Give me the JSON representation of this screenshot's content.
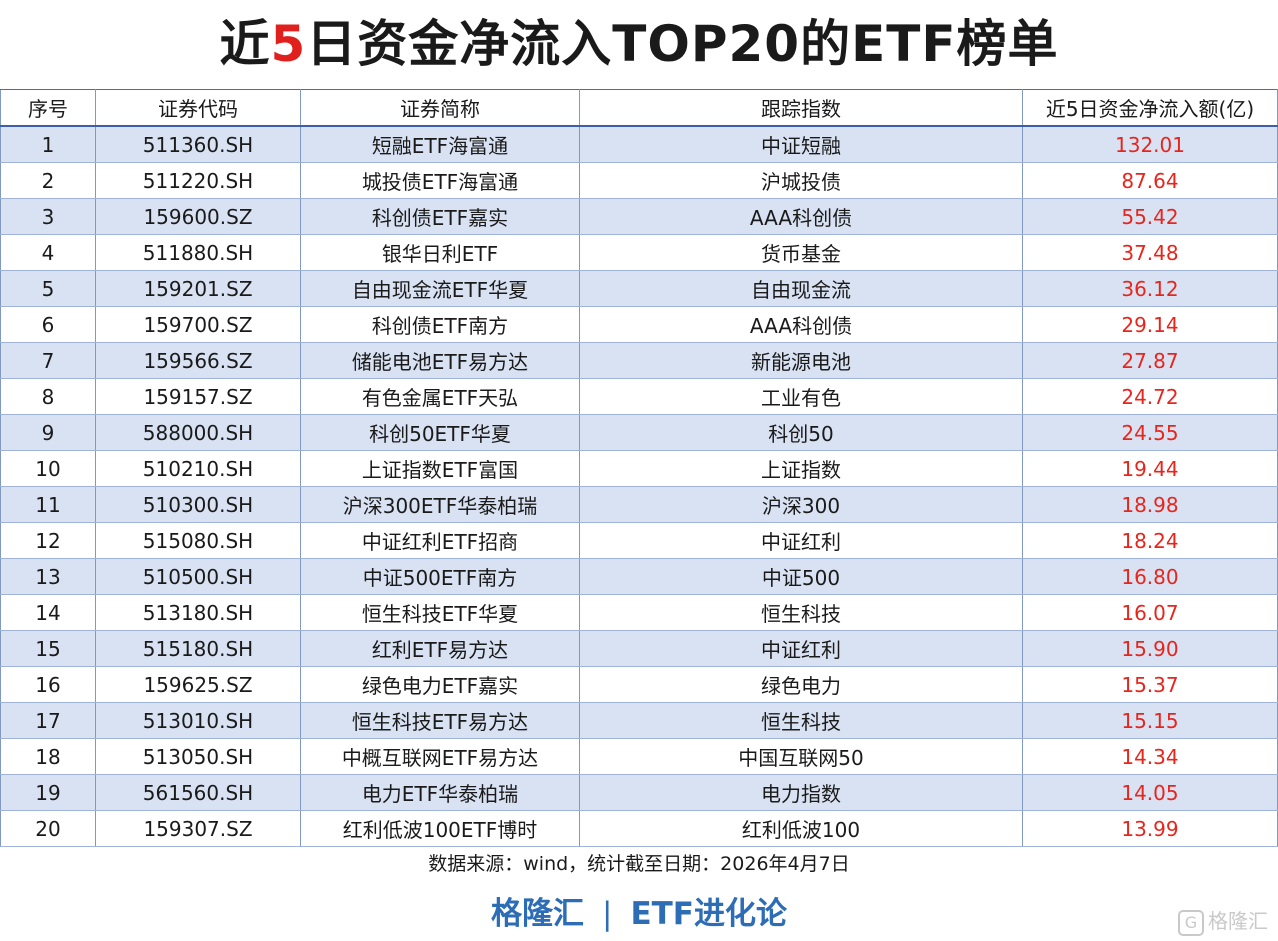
{
  "title": {
    "prefix": "近",
    "highlight": "5",
    "suffix": "日资金净流入TOP20的ETF榜单"
  },
  "table": {
    "headers": [
      "序号",
      "证券代码",
      "证券简称",
      "跟踪指数",
      "近5日资金净流入额(亿)"
    ],
    "rows": [
      {
        "rank": "1",
        "code": "511360.SH",
        "name": "短融ETF海富通",
        "index": "中证短融",
        "inflow": "132.01"
      },
      {
        "rank": "2",
        "code": "511220.SH",
        "name": "城投债ETF海富通",
        "index": "沪城投债",
        "inflow": "87.64"
      },
      {
        "rank": "3",
        "code": "159600.SZ",
        "name": "科创债ETF嘉实",
        "index": "AAA科创债",
        "inflow": "55.42"
      },
      {
        "rank": "4",
        "code": "511880.SH",
        "name": "银华日利ETF",
        "index": "货币基金",
        "inflow": "37.48"
      },
      {
        "rank": "5",
        "code": "159201.SZ",
        "name": "自由现金流ETF华夏",
        "index": "自由现金流",
        "inflow": "36.12"
      },
      {
        "rank": "6",
        "code": "159700.SZ",
        "name": "科创债ETF南方",
        "index": "AAA科创债",
        "inflow": "29.14"
      },
      {
        "rank": "7",
        "code": "159566.SZ",
        "name": "储能电池ETF易方达",
        "index": "新能源电池",
        "inflow": "27.87"
      },
      {
        "rank": "8",
        "code": "159157.SZ",
        "name": "有色金属ETF天弘",
        "index": "工业有色",
        "inflow": "24.72"
      },
      {
        "rank": "9",
        "code": "588000.SH",
        "name": "科创50ETF华夏",
        "index": "科创50",
        "inflow": "24.55"
      },
      {
        "rank": "10",
        "code": "510210.SH",
        "name": "上证指数ETF富国",
        "index": "上证指数",
        "inflow": "19.44"
      },
      {
        "rank": "11",
        "code": "510300.SH",
        "name": "沪深300ETF华泰柏瑞",
        "index": "沪深300",
        "inflow": "18.98"
      },
      {
        "rank": "12",
        "code": "515080.SH",
        "name": "中证红利ETF招商",
        "index": "中证红利",
        "inflow": "18.24"
      },
      {
        "rank": "13",
        "code": "510500.SH",
        "name": "中证500ETF南方",
        "index": "中证500",
        "inflow": "16.80"
      },
      {
        "rank": "14",
        "code": "513180.SH",
        "name": "恒生科技ETF华夏",
        "index": "恒生科技",
        "inflow": "16.07"
      },
      {
        "rank": "15",
        "code": "515180.SH",
        "name": "红利ETF易方达",
        "index": "中证红利",
        "inflow": "15.90"
      },
      {
        "rank": "16",
        "code": "159625.SZ",
        "name": "绿色电力ETF嘉实",
        "index": "绿色电力",
        "inflow": "15.37"
      },
      {
        "rank": "17",
        "code": "513010.SH",
        "name": "恒生科技ETF易方达",
        "index": "恒生科技",
        "inflow": "15.15"
      },
      {
        "rank": "18",
        "code": "513050.SH",
        "name": "中概互联网ETF易方达",
        "index": "中国互联网50",
        "inflow": "14.34"
      },
      {
        "rank": "19",
        "code": "561560.SH",
        "name": "电力ETF华泰柏瑞",
        "index": "电力指数",
        "inflow": "14.05"
      },
      {
        "rank": "20",
        "code": "159307.SZ",
        "name": "红利低波100ETF博时",
        "index": "红利低波100",
        "inflow": "13.99"
      }
    ]
  },
  "source": "数据来源：wind，统计截至日期：2026年4月7日",
  "brand": {
    "left": "格隆汇",
    "separator": "|",
    "right": "ETF进化论"
  },
  "watermark": {
    "icon": "G",
    "text": "格隆汇"
  },
  "colors": {
    "highlight": "#e0201c",
    "inflow_text": "#e8251c",
    "stripe": "#d9e2f3",
    "brand": "#2d6db6"
  }
}
